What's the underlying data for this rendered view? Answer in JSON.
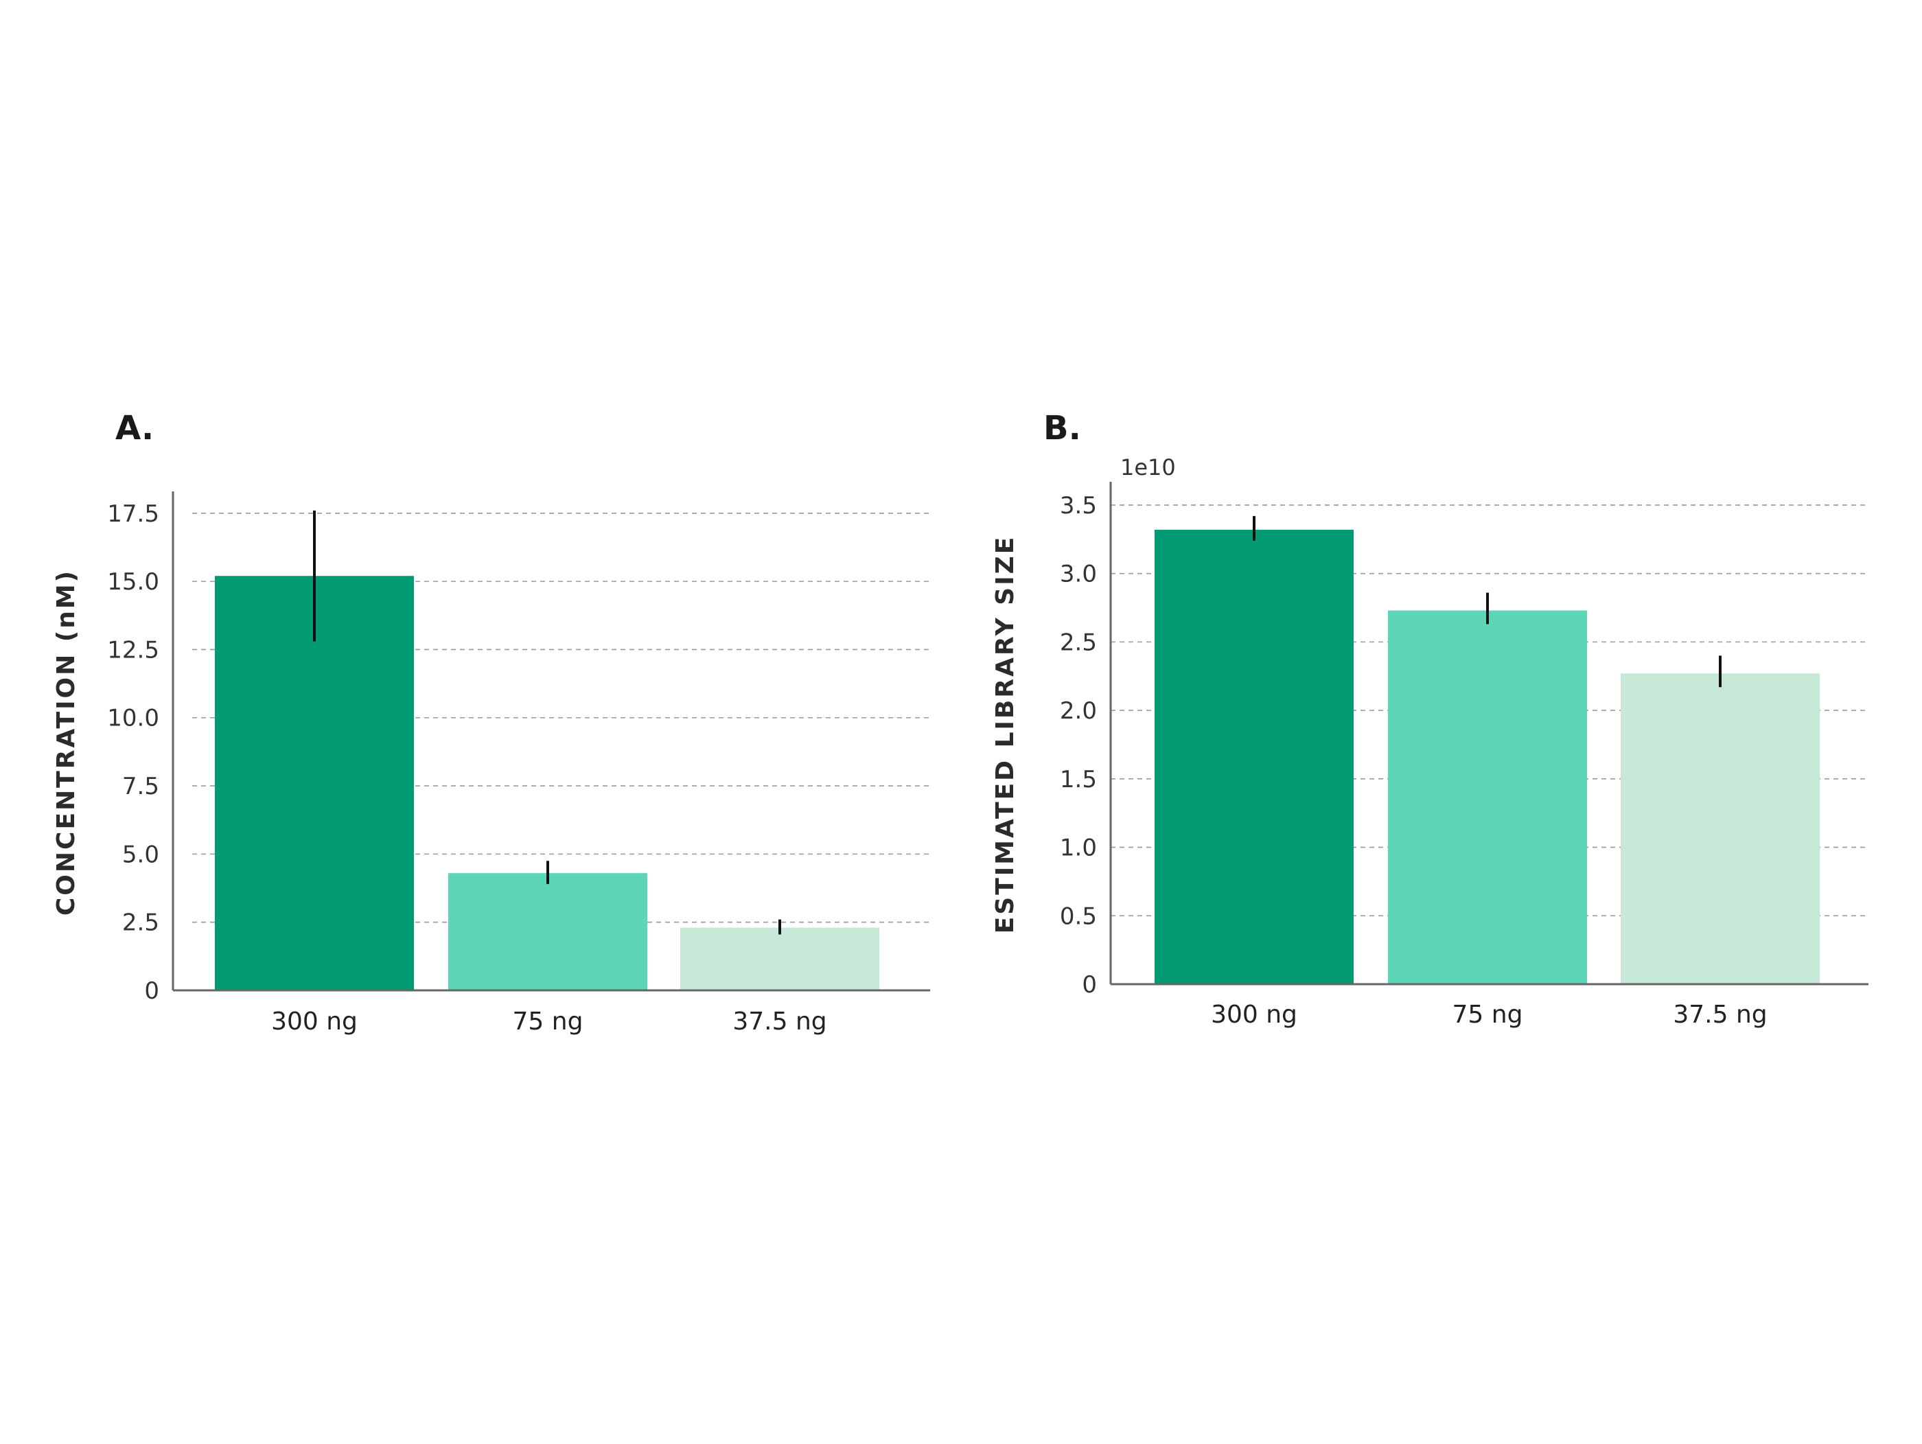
{
  "chart_data": [
    {
      "panel_label": "A.",
      "type": "bar",
      "categories": [
        "300 ng",
        "75 ng",
        "37.5 ng"
      ],
      "values": [
        15.2,
        4.3,
        2.3
      ],
      "error_low": [
        12.8,
        3.9,
        2.05
      ],
      "error_high": [
        17.6,
        4.75,
        2.6
      ],
      "ylabel": "CONCENTRATION (nM)",
      "xlabel": "",
      "ylim": [
        0,
        18.2
      ],
      "yticks": [
        0,
        2.5,
        5.0,
        7.5,
        10.0,
        12.5,
        15.0,
        17.5
      ],
      "ytick_labels": [
        "0",
        "2.5",
        "5.0",
        "7.5",
        "10.0",
        "12.5",
        "15.0",
        "17.5"
      ],
      "offset_label": "",
      "colors": [
        "#039b74",
        "#5cd6b6",
        "#c6e8d7"
      ],
      "grid": true
    },
    {
      "panel_label": "B.",
      "type": "bar",
      "categories": [
        "300 ng",
        "75 ng",
        "37.5 ng"
      ],
      "values": [
        3.32,
        2.73,
        2.27
      ],
      "error_low": [
        3.24,
        2.63,
        2.17
      ],
      "error_high": [
        3.42,
        2.86,
        2.4
      ],
      "ylabel": "ESTIMATED LIBRARY SIZE",
      "xlabel": "",
      "ylim": [
        0,
        3.65
      ],
      "yticks": [
        0,
        0.5,
        1.0,
        1.5,
        2.0,
        2.5,
        3.0,
        3.5
      ],
      "ytick_labels": [
        "0",
        "0.5",
        "1.0",
        "1.5",
        "2.0",
        "2.5",
        "3.0",
        "3.5"
      ],
      "offset_label": "1e10",
      "colors": [
        "#039b74",
        "#5cd6b6",
        "#c6e8d7"
      ],
      "grid": true
    }
  ]
}
